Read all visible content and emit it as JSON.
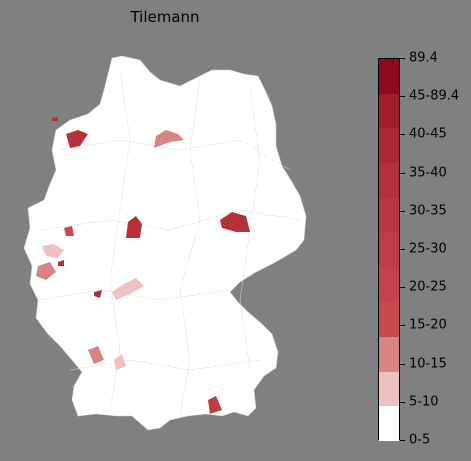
{
  "title": "Tilemann",
  "legend": {
    "labels": [
      "0-5",
      "5-10",
      "10-15",
      "15-20",
      "20-25",
      "25-30",
      "30-35",
      "35-40",
      "40-45",
      "45-89.4",
      "89.4"
    ],
    "colors": [
      "#ffffff",
      "#efc1c1",
      "#d98484",
      "#c8494c",
      "#c5424a",
      "#c03c45",
      "#bb3640",
      "#b6303b",
      "#ad2633",
      "#a21c2b",
      "#8e0b1f"
    ]
  }
}
